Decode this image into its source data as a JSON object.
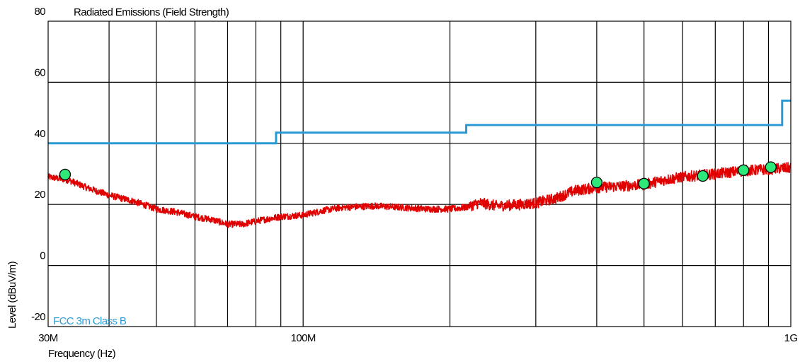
{
  "chart_data": {
    "type": "line",
    "title": "Radiated Emissions (Field Strength)",
    "xlabel": "Frequency (Hz)",
    "ylabel": "Level (dBuV/m)",
    "x_scale": "log",
    "xlim": [
      30000000,
      1000000000
    ],
    "ylim": [
      -20,
      80
    ],
    "x_ticks": [
      {
        "value": 30000000,
        "label": "30M"
      },
      {
        "value": 100000000,
        "label": "100M"
      },
      {
        "value": 1000000000,
        "label": "1G"
      }
    ],
    "y_ticks": [
      {
        "value": 80,
        "label": "80"
      },
      {
        "value": 60,
        "label": "60"
      },
      {
        "value": 40,
        "label": "40"
      },
      {
        "value": 20,
        "label": "20"
      },
      {
        "value": 0,
        "label": "0"
      },
      {
        "value": -20,
        "label": "-20"
      }
    ],
    "grid": true,
    "legend": [
      {
        "label": "FCC 3m Class B",
        "color": "#2a9ad6",
        "position": "bottom-left"
      }
    ],
    "series": [
      {
        "name": "FCC 3m Class B",
        "color": "#2a9ad6",
        "style": "step",
        "x": [
          30000000,
          88000000,
          88000000,
          216000000,
          216000000,
          960000000,
          960000000,
          1000000000
        ],
        "y": [
          40,
          40,
          43.5,
          43.5,
          46,
          46,
          54,
          54
        ]
      },
      {
        "color": "#e00000",
        "style": "noisy-line",
        "x": [
          30000000,
          33000000,
          36000000,
          40000000,
          45000000,
          50000000,
          55000000,
          60000000,
          65000000,
          70000000,
          75000000,
          80000000,
          90000000,
          100000000,
          110000000,
          120000000,
          140000000,
          160000000,
          180000000,
          200000000,
          215000000,
          230000000,
          250000000,
          280000000,
          300000000,
          330000000,
          360000000,
          400000000,
          450000000,
          500000000,
          550000000,
          600000000,
          700000000,
          800000000,
          900000000,
          1000000000
        ],
        "y": [
          29,
          28,
          25.5,
          23,
          21,
          18.5,
          17.5,
          16,
          15,
          13.5,
          13.5,
          14.5,
          16,
          16.5,
          18,
          19,
          19.5,
          19,
          18.5,
          18.5,
          19,
          20.5,
          19.5,
          20,
          20.5,
          22,
          24.5,
          25.5,
          26,
          26.5,
          28,
          29,
          30,
          31,
          31.5,
          32
        ]
      }
    ],
    "markers": {
      "color": "#2ee87a",
      "points": [
        {
          "x": 32500000,
          "y": 29.8
        },
        {
          "x": 400000000,
          "y": 27.2
        },
        {
          "x": 500000000,
          "y": 26.8
        },
        {
          "x": 660000000,
          "y": 29.3
        },
        {
          "x": 800000000,
          "y": 31.2
        },
        {
          "x": 910000000,
          "y": 32.2
        }
      ]
    }
  }
}
